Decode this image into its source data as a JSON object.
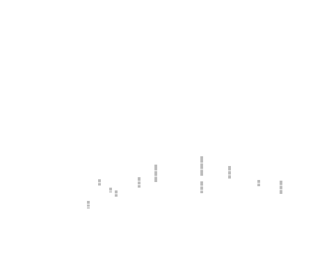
{
  "chart_data": {
    "type": "bar",
    "title": "",
    "xlabel": "",
    "ylabel": "",
    "grid": false,
    "legend": "none",
    "ylim": [
      0,
      400
    ],
    "colors": {
      "dark": "#bdbdbd",
      "light": "#d9d9d9"
    },
    "columns": [
      {
        "x": 127,
        "segments": [
          {
            "y0": 112,
            "y1": 101,
            "tone": "dark"
          }
        ]
      },
      {
        "x": 143,
        "segments": [
          {
            "y0": 143,
            "y1": 134,
            "tone": "dark"
          }
        ]
      },
      {
        "x": 159,
        "segments": [
          {
            "y0": 131,
            "y1": 124,
            "tone": "dark"
          }
        ]
      },
      {
        "x": 167,
        "segments": [
          {
            "y0": 127,
            "y1": 118,
            "tone": "dark"
          }
        ]
      },
      {
        "x": 200,
        "segments": [
          {
            "y0": 146,
            "y1": 131,
            "tone": "dark"
          }
        ]
      },
      {
        "x": 224,
        "segments": [
          {
            "y0": 164,
            "y1": 139,
            "tone": "dark"
          }
        ]
      },
      {
        "x": 290,
        "segments": [
          {
            "y0": 176,
            "y1": 148,
            "tone": "dark"
          },
          {
            "y0": 140,
            "y1": 123,
            "tone": "dark"
          }
        ]
      },
      {
        "x": 330,
        "segments": [
          {
            "y0": 162,
            "y1": 144,
            "tone": "dark"
          }
        ]
      },
      {
        "x": 372,
        "segments": [
          {
            "y0": 142,
            "y1": 133,
            "tone": "dark"
          }
        ]
      },
      {
        "x": 404,
        "segments": [
          {
            "y0": 141,
            "y1": 122,
            "tone": "dark"
          }
        ]
      }
    ]
  }
}
